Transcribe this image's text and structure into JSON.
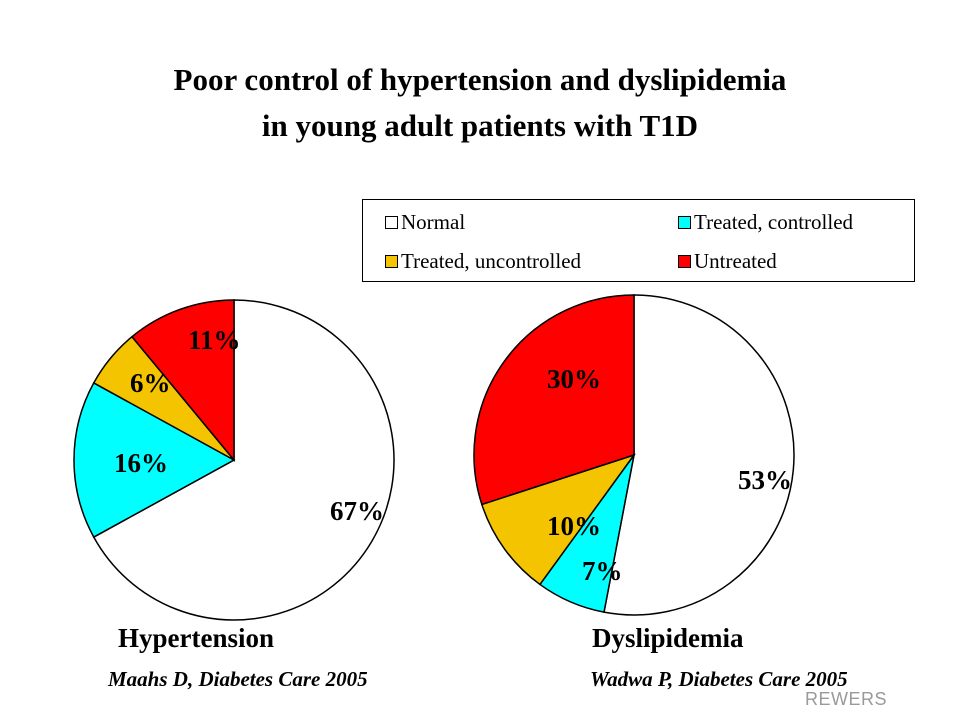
{
  "title": {
    "line1": "Poor control of hypertension and dyslipidemia",
    "line2": "in young adult patients with T1D"
  },
  "legend": [
    {
      "label": "Normal",
      "color": "#ffffff"
    },
    {
      "label": "Treated, controlled",
      "color": "#00ffff"
    },
    {
      "label": "Treated, uncontrolled",
      "color": "#f5c400"
    },
    {
      "label": "Untreated",
      "color": "#ff0000"
    }
  ],
  "chart_data": [
    {
      "type": "pie",
      "title": "Hypertension",
      "source": "Maahs D, Diabetes Care 2005",
      "slices": [
        {
          "label": "Normal",
          "value": 67,
          "display": "67%",
          "color": "#ffffff"
        },
        {
          "label": "Treated, controlled",
          "value": 16,
          "display": "16%",
          "color": "#00ffff"
        },
        {
          "label": "Treated, uncontrolled",
          "value": 6,
          "display": "6%",
          "color": "#f5c400"
        },
        {
          "label": "Untreated",
          "value": 11,
          "display": "11%",
          "color": "#ff0000"
        }
      ]
    },
    {
      "type": "pie",
      "title": "Dyslipidemia",
      "source": "Wadwa P, Diabetes Care 2005",
      "slices": [
        {
          "label": "Normal",
          "value": 53,
          "display": "53%",
          "color": "#ffffff"
        },
        {
          "label": "Treated, controlled",
          "value": 7,
          "display": "7%",
          "color": "#00ffff"
        },
        {
          "label": "Treated, uncontrolled",
          "value": 10,
          "display": "10%",
          "color": "#f5c400"
        },
        {
          "label": "Untreated",
          "value": 30,
          "display": "30%",
          "color": "#ff0000"
        }
      ]
    }
  ],
  "footer": "REWERS"
}
